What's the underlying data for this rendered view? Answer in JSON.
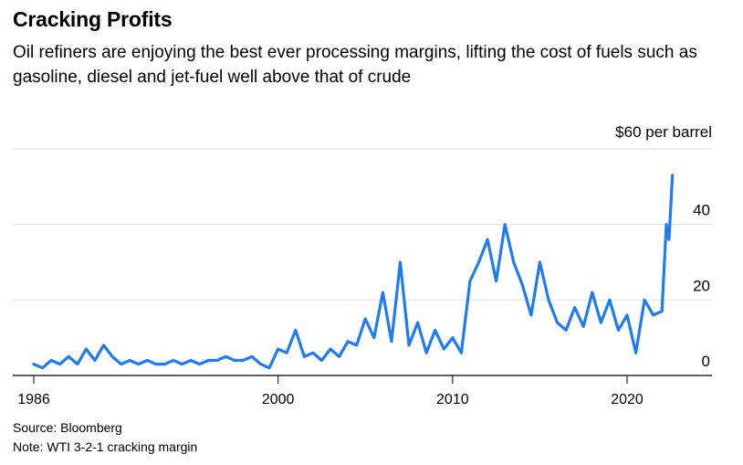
{
  "title": "Cracking Profits",
  "subtitle": "Oil refiners are enjoying the best ever processing margins, lifting the cost of fuels such as gasoline, diesel and jet-fuel well above that of crude",
  "source": "Source: Bloomberg",
  "note": "Note: WTI 3-2-1 cracking margin",
  "chart_data": {
    "type": "line",
    "title": "Cracking Profits",
    "ylabel": "$60 per barrel",
    "ylim": [
      0,
      60
    ],
    "xlim": [
      1986,
      2024
    ],
    "y_ticks": [
      0,
      20,
      40
    ],
    "y_tick_labels": [
      "0",
      "20",
      "40"
    ],
    "x_ticks": [
      1986,
      2000,
      2010,
      2020
    ],
    "x_tick_labels": [
      "1986",
      "2000",
      "2010",
      "2020"
    ],
    "grid": true,
    "line_color": "#1f7bf5",
    "series": [
      {
        "x": [
          1986.0,
          1986.5,
          1987.0,
          1987.5,
          1988.0,
          1988.5,
          1989.0,
          1989.5,
          1990.0,
          1990.5,
          1991.0,
          1991.5,
          1992.0,
          1992.5,
          1993.0,
          1993.5,
          1994.0,
          1994.5,
          1995.0,
          1995.5,
          1996.0,
          1996.5,
          1997.0,
          1997.5,
          1998.0,
          1998.5,
          1999.0,
          1999.5,
          2000.0,
          2000.5,
          2001.0,
          2001.5,
          2002.0,
          2002.5,
          2003.0,
          2003.5,
          2004.0,
          2004.5,
          2005.0,
          2005.5,
          2006.0,
          2006.5,
          2007.0,
          2007.5,
          2008.0,
          2008.5,
          2009.0,
          2009.5,
          2010.0,
          2010.5,
          2011.0,
          2011.5,
          2012.0,
          2012.5,
          2013.0,
          2013.5,
          2014.0,
          2014.5,
          2015.0,
          2015.5,
          2016.0,
          2016.5,
          2017.0,
          2017.5,
          2018.0,
          2018.5,
          2019.0,
          2019.5,
          2020.0,
          2020.5,
          2021.0,
          2021.5,
          2022.0,
          2022.25,
          2022.4,
          2022.6
        ],
        "values": [
          3,
          2,
          4,
          3,
          5,
          3,
          7,
          4,
          8,
          5,
          3,
          4,
          3,
          4,
          3,
          3,
          4,
          3,
          4,
          3,
          4,
          4,
          5,
          4,
          4,
          5,
          3,
          2,
          7,
          6,
          12,
          5,
          6,
          4,
          7,
          5,
          9,
          8,
          15,
          10,
          22,
          9,
          30,
          8,
          14,
          6,
          12,
          7,
          10,
          6,
          25,
          30,
          36,
          25,
          40,
          30,
          24,
          16,
          30,
          20,
          14,
          12,
          18,
          13,
          22,
          14,
          20,
          12,
          16,
          6,
          20,
          16,
          17,
          40,
          36,
          53
        ]
      }
    ]
  }
}
